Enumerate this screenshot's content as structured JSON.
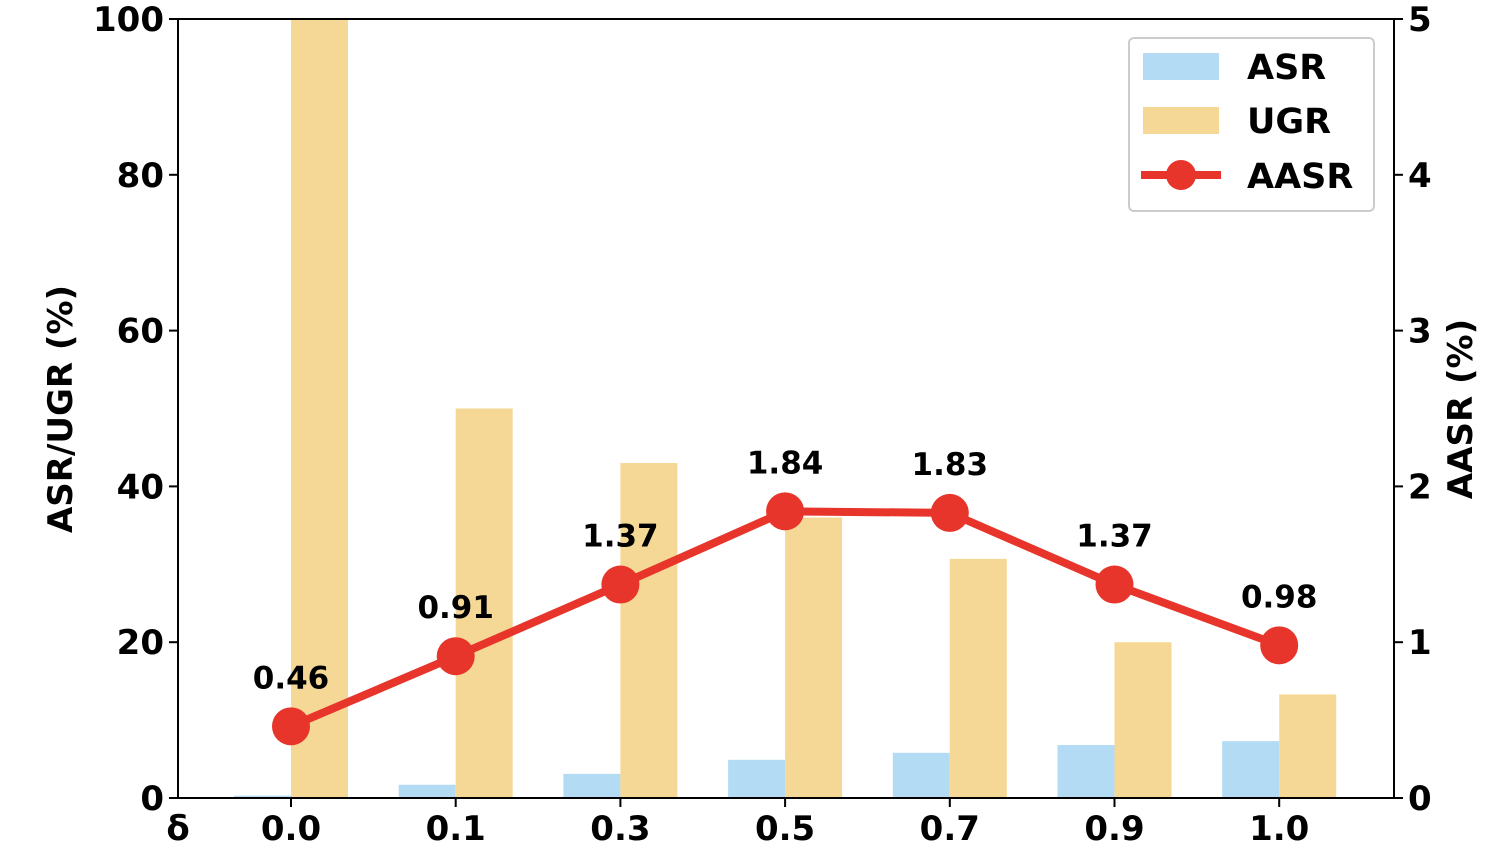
{
  "chart_data": {
    "type": "bar",
    "categories": [
      "0.0",
      "0.1",
      "0.3",
      "0.5",
      "0.7",
      "0.9",
      "1.0"
    ],
    "x_axis_symbol": "δ",
    "ylabel": "ASR/UGR (%)",
    "ylabel_right": "AASR (%)",
    "ylim": [
      0,
      100
    ],
    "ylim_right": [
      0,
      5
    ],
    "y_ticks": [
      "0",
      "20",
      "40",
      "60",
      "80",
      "100"
    ],
    "y_ticks_right": [
      "0",
      "1",
      "2",
      "3",
      "4",
      "5"
    ],
    "series": [
      {
        "name": "ASR",
        "type": "bar",
        "axis": "left",
        "color": "#b3dcf4",
        "values": [
          0.3,
          1.7,
          3.1,
          4.9,
          5.8,
          6.8,
          7.3
        ]
      },
      {
        "name": "UGR",
        "type": "bar",
        "axis": "left",
        "color": "#f6d896",
        "values": [
          100,
          50,
          43,
          36,
          30.7,
          20,
          13.3
        ]
      },
      {
        "name": "AASR",
        "type": "line",
        "axis": "right",
        "color": "#e8352b",
        "values": [
          0.46,
          0.91,
          1.37,
          1.84,
          1.83,
          1.37,
          0.98
        ],
        "labels": [
          "0.46",
          "0.91",
          "1.37",
          "1.84",
          "1.83",
          "1.37",
          "0.98"
        ]
      }
    ],
    "legend": {
      "position": "top-right",
      "entries": [
        "ASR",
        "UGR",
        "AASR"
      ]
    },
    "grid": false
  }
}
